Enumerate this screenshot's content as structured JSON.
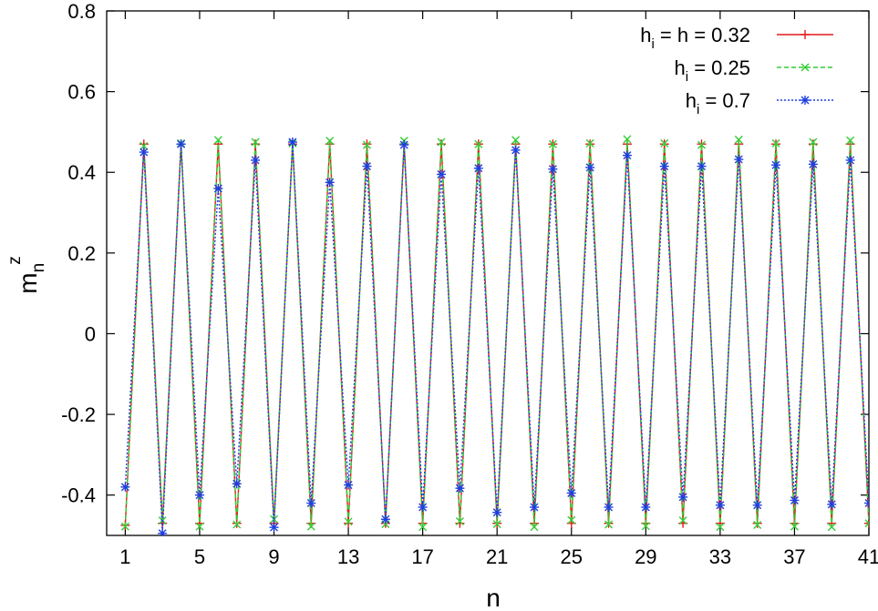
{
  "chart_data": {
    "type": "line",
    "title": "",
    "xlabel": "n",
    "ylabel": {
      "base": "m",
      "sub": "n",
      "sup": "z"
    },
    "xlim": [
      0,
      41
    ],
    "ylim": [
      -0.5,
      0.8
    ],
    "xticks": [
      1,
      5,
      9,
      13,
      17,
      21,
      25,
      29,
      33,
      37,
      41
    ],
    "yticks": [
      -0.4,
      -0.2,
      0,
      0.2,
      0.4,
      0.6,
      0.8
    ],
    "ytick_labels": [
      "-0.4",
      "-0.2",
      "0",
      "0.2",
      "0.4",
      "0.6",
      "0.8"
    ],
    "legend_position": "top-right",
    "grid": false,
    "x": [
      1,
      2,
      3,
      4,
      5,
      6,
      7,
      8,
      9,
      10,
      11,
      12,
      13,
      14,
      15,
      16,
      17,
      18,
      19,
      20,
      21,
      22,
      23,
      24,
      25,
      26,
      27,
      28,
      29,
      30,
      31,
      32,
      33,
      34,
      35,
      36,
      37,
      38,
      39,
      40,
      41
    ],
    "series": [
      {
        "name_main": "h",
        "name_sub": "i",
        "name_rest": " = h = 0.32",
        "color": "#e41a1c",
        "dash": "",
        "marker": "plus",
        "values": [
          -0.475,
          0.47,
          -0.47,
          0.47,
          -0.47,
          0.47,
          -0.47,
          0.47,
          -0.47,
          0.47,
          -0.47,
          0.47,
          -0.47,
          0.47,
          -0.47,
          0.47,
          -0.47,
          0.47,
          -0.47,
          0.47,
          -0.47,
          0.47,
          -0.47,
          0.47,
          -0.47,
          0.47,
          -0.47,
          0.47,
          -0.47,
          0.47,
          -0.47,
          0.47,
          -0.47,
          0.47,
          -0.47,
          0.47,
          -0.47,
          0.47,
          -0.47,
          0.47,
          -0.47
        ]
      },
      {
        "name_main": "h",
        "name_sub": "i",
        "name_rest": " = 0.25",
        "color": "#33cc33",
        "dash": "5,3",
        "marker": "cross",
        "values": [
          -0.478,
          0.465,
          -0.463,
          0.472,
          -0.478,
          0.48,
          -0.473,
          0.475,
          -0.46,
          0.472,
          -0.478,
          0.478,
          -0.466,
          0.468,
          -0.472,
          0.478,
          -0.479,
          0.475,
          -0.465,
          0.47,
          -0.472,
          0.48,
          -0.479,
          0.47,
          -0.462,
          0.472,
          -0.473,
          0.482,
          -0.477,
          0.472,
          -0.463,
          0.468,
          -0.479,
          0.481,
          -0.474,
          0.472,
          -0.478,
          0.475,
          -0.479,
          0.479,
          -0.47
        ]
      },
      {
        "name_main": "h",
        "name_sub": "i",
        "name_rest": " = 0.7",
        "color": "#1f3fe0",
        "dash": "2,2",
        "marker": "star",
        "values": [
          -0.38,
          0.45,
          -0.495,
          0.47,
          -0.4,
          0.36,
          -0.372,
          0.43,
          -0.48,
          0.475,
          -0.42,
          0.375,
          -0.375,
          0.415,
          -0.46,
          0.468,
          -0.43,
          0.395,
          -0.383,
          0.41,
          -0.443,
          0.455,
          -0.43,
          0.408,
          -0.395,
          0.412,
          -0.43,
          0.442,
          -0.43,
          0.415,
          -0.405,
          0.415,
          -0.425,
          0.432,
          -0.425,
          0.418,
          -0.413,
          0.42,
          -0.423,
          0.43,
          -0.42
        ]
      }
    ]
  }
}
